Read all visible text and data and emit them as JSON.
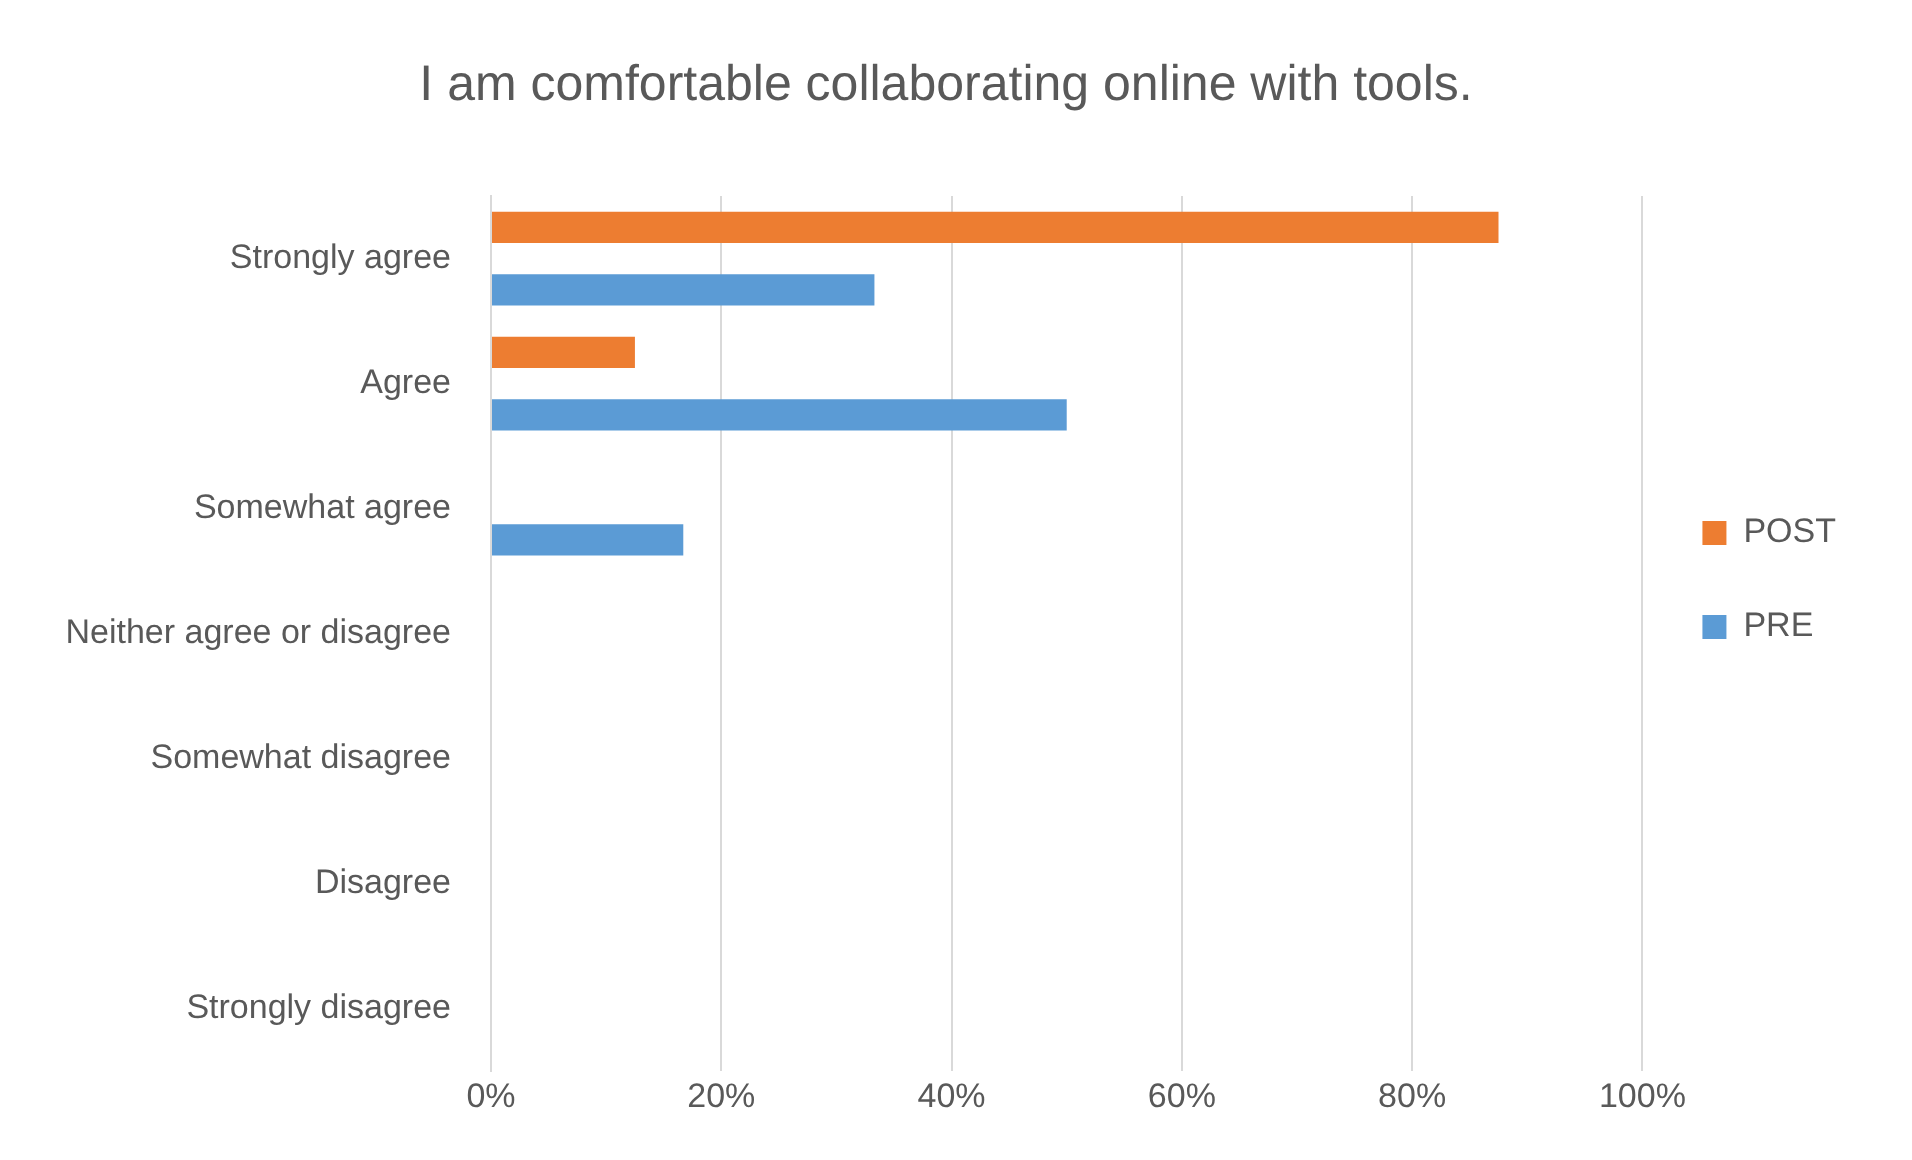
{
  "chart_data": {
    "type": "bar",
    "orientation": "horizontal",
    "title": "I am comfortable collaborating online with tools.",
    "categories": [
      "Strongly agree",
      "Agree",
      "Somewhat agree",
      "Neither agree or disagree",
      "Somewhat disagree",
      "Disagree",
      "Strongly disagree"
    ],
    "series": [
      {
        "name": "POST",
        "color": "#ed7d31",
        "values": [
          87.5,
          12.5,
          0,
          0,
          0,
          0,
          0
        ]
      },
      {
        "name": "PRE",
        "color": "#5b9bd5",
        "values": [
          33.3,
          50,
          16.7,
          0,
          0,
          0,
          0
        ]
      }
    ],
    "xlim": [
      0,
      100
    ],
    "xticks": [
      {
        "value": 0,
        "label": "0%"
      },
      {
        "value": 20,
        "label": "20%"
      },
      {
        "value": 40,
        "label": "40%"
      },
      {
        "value": 60,
        "label": "60%"
      },
      {
        "value": 80,
        "label": "80%"
      },
      {
        "value": 100,
        "label": "100%"
      }
    ],
    "grid": "x",
    "legend": "right"
  }
}
